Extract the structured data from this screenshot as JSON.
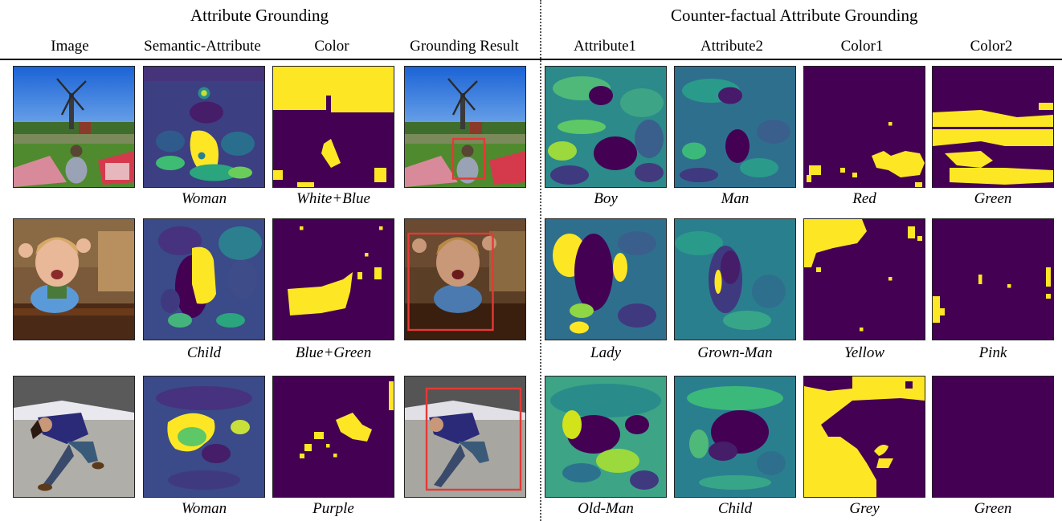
{
  "headers": {
    "left_section": "Attribute Grounding",
    "right_section": "Counter-factual Attribute Grounding",
    "columns": [
      "Image",
      "Semantic-Attribute",
      "Color",
      "Grounding Result",
      "Attribute1",
      "Attribute2",
      "Color1",
      "Color2"
    ]
  },
  "rows": [
    {
      "semantic_caption": "Woman",
      "color_caption": "White+Blue",
      "cf": [
        "Boy",
        "Man",
        "Red",
        "Green"
      ]
    },
    {
      "semantic_caption": "Child",
      "color_caption": "Blue+Green",
      "cf": [
        "Lady",
        "Grown-Man",
        "Yellow",
        "Pink"
      ]
    },
    {
      "semantic_caption": "Woman",
      "color_caption": "Purple",
      "cf": [
        "Old-Man",
        "Child",
        "Grey",
        "Green"
      ]
    }
  ],
  "colors": {
    "heat_low": "#440154",
    "heat_mid": "#2a7f8e",
    "heat_high": "#fde725",
    "box": "#e53935"
  }
}
